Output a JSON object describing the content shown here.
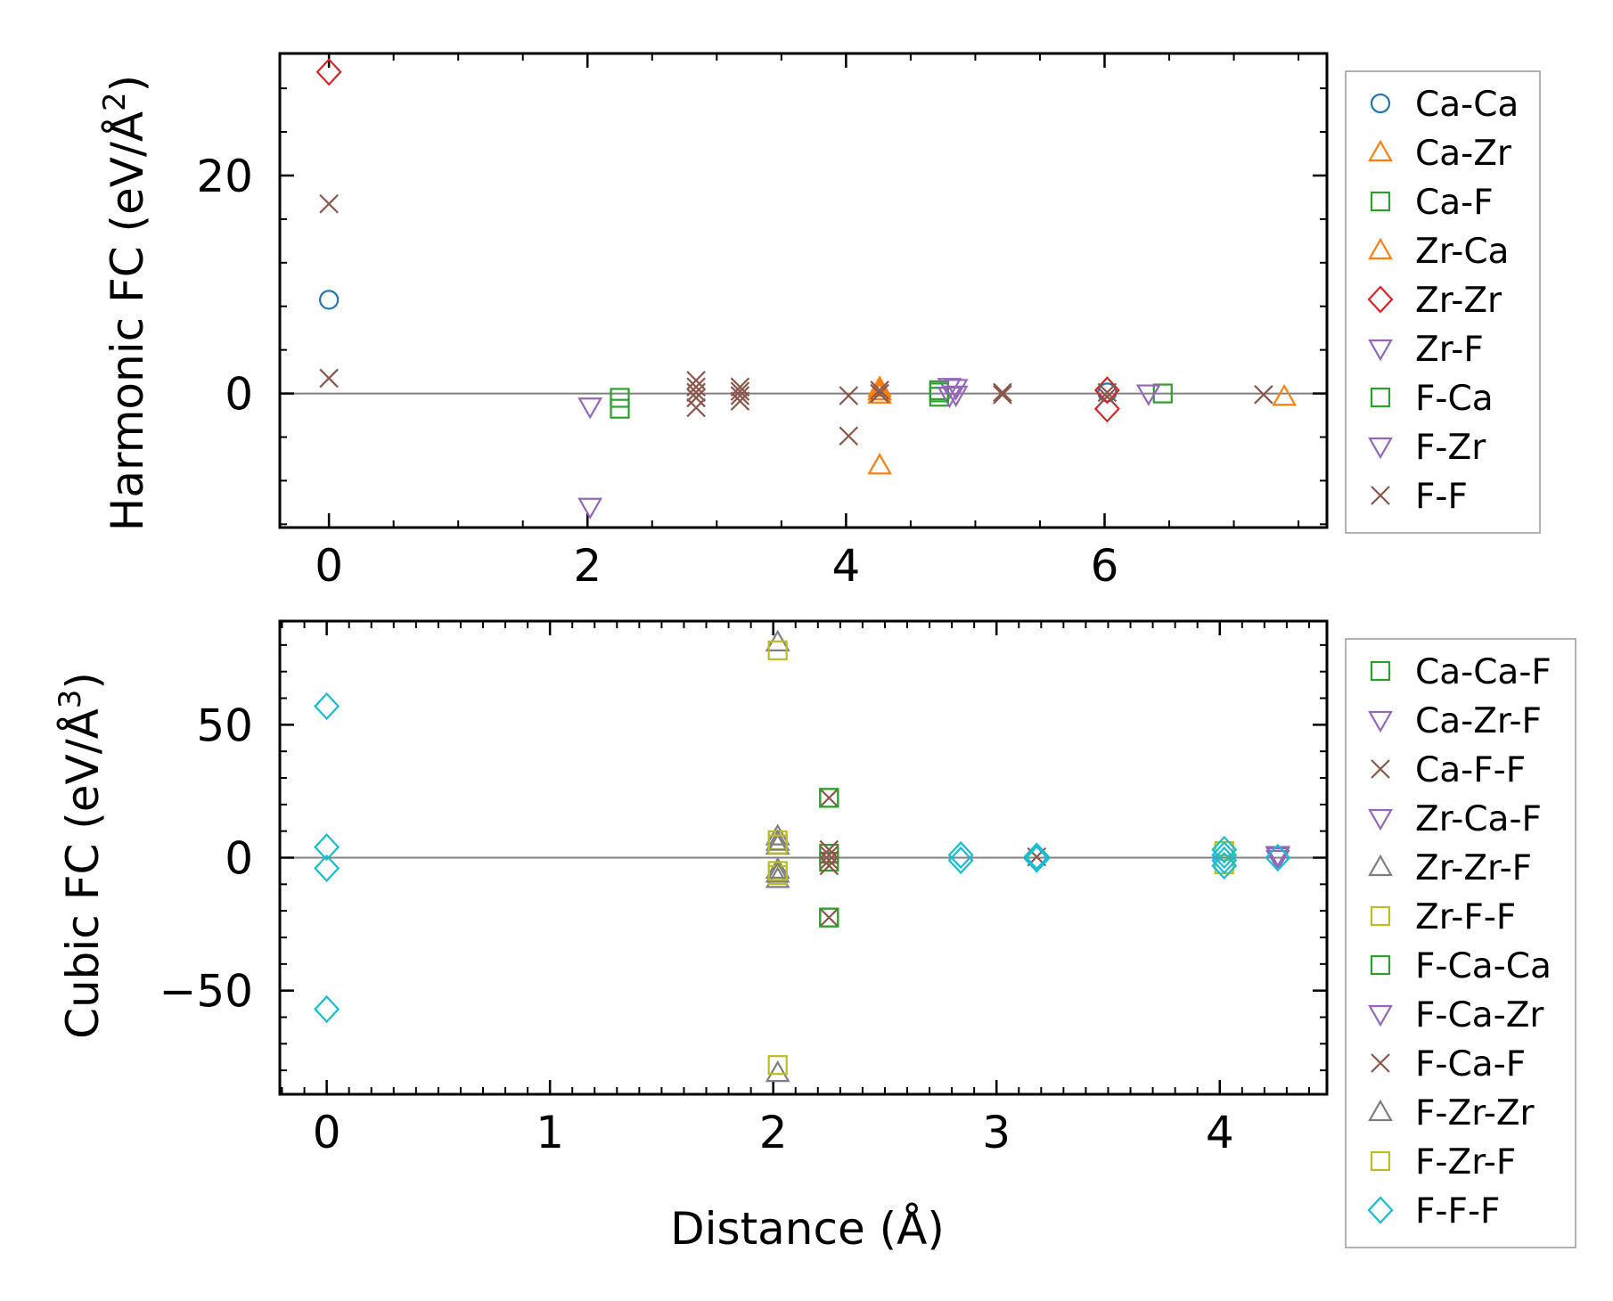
{
  "colors": {
    "Ca-Ca": "#1f77b4",
    "Ca-Zr": "#ff7f0e",
    "Ca-F": "#2ca02c",
    "Zr-Ca": "#ff7f0e",
    "Zr-Zr": "#d62728",
    "Zr-F": "#9467bd",
    "F-Ca": "#2ca02c",
    "F-Zr": "#9467bd",
    "F-F": "#8c564b",
    "Ca-Ca-F": "#2ca02c",
    "Ca-Zr-F": "#9467bd",
    "Ca-F-F": "#8c564b",
    "Zr-Ca-F": "#9467bd",
    "Zr-Zr-F": "#7f7f7f",
    "Zr-F-F": "#bcbd22",
    "F-Ca-Ca": "#2ca02c",
    "F-Ca-Zr": "#9467bd",
    "F-Ca-F": "#8c564b",
    "F-Zr-Zr": "#7f7f7f",
    "F-Zr-F": "#bcbd22",
    "F-F-F": "#17becf",
    "zero_line": "#808080"
  },
  "chart_data": [
    {
      "type": "scatter",
      "ylabel_main": "Harmonic FC (eV/Å",
      "ylabel_sup": "2",
      "ylabel_end": ")",
      "xlabel": "",
      "xlim": [
        -0.38,
        7.72
      ],
      "ylim": [
        -12.3,
        31.2
      ],
      "xticks": [
        0,
        2,
        4,
        6
      ],
      "xtick_labels": [
        "0",
        "2",
        "4",
        "6"
      ],
      "yticks": [
        0,
        20
      ],
      "ytick_labels": [
        "0",
        "20"
      ],
      "legend": [
        "Ca-Ca",
        "Ca-Zr",
        "Ca-F",
        "Zr-Ca",
        "Zr-Zr",
        "Zr-F",
        "F-Ca",
        "F-Zr",
        "F-F"
      ],
      "series": [
        {
          "name": "Ca-Ca",
          "marker": "circle",
          "points": [
            [
              0,
              8.6
            ],
            [
              6.02,
              0.1
            ]
          ]
        },
        {
          "name": "Ca-Zr",
          "marker": "triangle-up",
          "points": [
            [
              4.26,
              0.5
            ],
            [
              4.26,
              -6.6
            ],
            [
              7.39,
              -0.3
            ]
          ]
        },
        {
          "name": "Ca-F",
          "marker": "square",
          "points": [
            [
              2.25,
              -0.4
            ],
            [
              2.25,
              -1.4
            ],
            [
              4.72,
              0.3
            ],
            [
              4.72,
              -0.3
            ],
            [
              6.45,
              0.0
            ]
          ]
        },
        {
          "name": "Zr-Ca",
          "marker": "triangle-up",
          "points": [
            [
              4.26,
              0.2
            ],
            [
              4.26,
              -0.1
            ]
          ]
        },
        {
          "name": "Zr-Zr",
          "marker": "diamond",
          "points": [
            [
              0,
              29.5
            ],
            [
              6.02,
              0.3
            ],
            [
              6.02,
              -1.4
            ]
          ]
        },
        {
          "name": "Zr-F",
          "marker": "triangle-down",
          "points": [
            [
              2.02,
              -1.2
            ],
            [
              2.02,
              -10.4
            ],
            [
              4.8,
              0.6
            ],
            [
              4.8,
              -0.2
            ],
            [
              6.34,
              0.0
            ]
          ]
        },
        {
          "name": "F-Ca",
          "marker": "square",
          "points": [
            [
              4.72,
              0.1
            ]
          ]
        },
        {
          "name": "F-Zr",
          "marker": "triangle-down",
          "points": [
            [
              4.85,
              0.5
            ],
            [
              4.85,
              -0.1
            ]
          ]
        },
        {
          "name": "F-F",
          "marker": "x",
          "points": [
            [
              0,
              17.4
            ],
            [
              0,
              1.4
            ],
            [
              2.84,
              1.2
            ],
            [
              2.84,
              0.6
            ],
            [
              2.84,
              0.1
            ],
            [
              2.84,
              -0.4
            ],
            [
              2.84,
              -1.3
            ],
            [
              3.18,
              0.6
            ],
            [
              3.18,
              0.2
            ],
            [
              3.18,
              -0.2
            ],
            [
              3.18,
              -0.7
            ],
            [
              4.02,
              -0.2
            ],
            [
              4.02,
              -3.9
            ],
            [
              4.26,
              0.3
            ],
            [
              4.26,
              0.0
            ],
            [
              5.21,
              0.1
            ],
            [
              5.21,
              -0.1
            ],
            [
              6.02,
              0.1
            ],
            [
              6.02,
              -0.3
            ],
            [
              7.23,
              -0.1
            ]
          ]
        }
      ]
    },
    {
      "type": "scatter",
      "ylabel_main": "Cubic FC (eV/Å",
      "ylabel_sup": "3",
      "ylabel_end": ")",
      "xlabel": "Distance (Å)",
      "xlim": [
        -0.21,
        4.48
      ],
      "ylim": [
        -89,
        89
      ],
      "xticks": [
        0,
        1,
        2,
        3,
        4
      ],
      "xtick_labels": [
        "0",
        "1",
        "2",
        "3",
        "4"
      ],
      "yticks": [
        -50,
        0,
        50
      ],
      "ytick_labels": [
        "−50",
        "0",
        "50"
      ],
      "legend": [
        "Ca-Ca-F",
        "Ca-Zr-F",
        "Ca-F-F",
        "Zr-Ca-F",
        "Zr-Zr-F",
        "Zr-F-F",
        "F-Ca-Ca",
        "F-Ca-Zr",
        "F-Ca-F",
        "F-Zr-Zr",
        "F-Zr-F",
        "F-F-F"
      ],
      "series": [
        {
          "name": "Ca-Ca-F",
          "marker": "square",
          "points": [
            [
              2.25,
              22.5
            ],
            [
              2.25,
              -22.5
            ],
            [
              2.25,
              1.5
            ],
            [
              2.25,
              -1.5
            ]
          ]
        },
        {
          "name": "Ca-Zr-F",
          "marker": "triangle-down",
          "points": [
            [
              4.26,
              1.0
            ],
            [
              4.26,
              -0.5
            ]
          ]
        },
        {
          "name": "Ca-F-F",
          "marker": "x",
          "points": [
            [
              2.25,
              22.5
            ],
            [
              2.25,
              -22.5
            ],
            [
              2.25,
              3.0
            ],
            [
              2.25,
              -3.0
            ],
            [
              3.18,
              0.3
            ]
          ]
        },
        {
          "name": "Zr-Ca-F",
          "marker": "triangle-down",
          "points": [
            [
              4.26,
              0.5
            ]
          ]
        },
        {
          "name": "Zr-Zr-F",
          "marker": "triangle-up",
          "points": [
            [
              2.02,
              81.0
            ],
            [
              2.02,
              -81.0
            ],
            [
              2.02,
              8.0
            ],
            [
              2.02,
              -8.0
            ],
            [
              2.02,
              4.5
            ],
            [
              2.02,
              -4.5
            ]
          ]
        },
        {
          "name": "Zr-F-F",
          "marker": "square",
          "points": [
            [
              2.02,
              78.0
            ],
            [
              2.02,
              -78.0
            ],
            [
              2.02,
              6.5
            ],
            [
              2.02,
              -6.5
            ],
            [
              4.02,
              2.5
            ],
            [
              4.02,
              -2.5
            ]
          ]
        },
        {
          "name": "F-Ca-Ca",
          "marker": "square",
          "points": [
            [
              2.25,
              22.5
            ],
            [
              2.25,
              -22.5
            ]
          ]
        },
        {
          "name": "F-Ca-Zr",
          "marker": "triangle-down",
          "points": [
            [
              4.26,
              0.8
            ]
          ]
        },
        {
          "name": "F-Ca-F",
          "marker": "x",
          "points": [
            [
              2.25,
              1.0
            ],
            [
              2.25,
              -1.0
            ]
          ]
        },
        {
          "name": "F-Zr-Zr",
          "marker": "triangle-up",
          "points": [
            [
              2.02,
              6.0
            ],
            [
              2.02,
              -6.0
            ]
          ]
        },
        {
          "name": "F-Zr-F",
          "marker": "square",
          "points": [
            [
              2.02,
              5.0
            ],
            [
              2.02,
              -5.0
            ]
          ]
        },
        {
          "name": "F-F-F",
          "marker": "diamond",
          "points": [
            [
              0,
              57.0
            ],
            [
              0,
              4.0
            ],
            [
              0,
              -4.0
            ],
            [
              0,
              -57.0
            ],
            [
              2.84,
              1.0
            ],
            [
              2.84,
              -1.0
            ],
            [
              3.18,
              0.5
            ],
            [
              3.18,
              -0.5
            ],
            [
              4.02,
              3.0
            ],
            [
              4.02,
              1.0
            ],
            [
              4.02,
              -1.0
            ],
            [
              4.02,
              -3.0
            ],
            [
              4.26,
              0.0
            ]
          ]
        }
      ]
    }
  ]
}
